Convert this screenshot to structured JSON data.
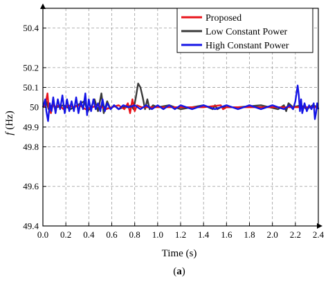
{
  "chart_data": {
    "type": "line",
    "xlabel": "Time (s)",
    "ylabel_italic": "f",
    "ylabel_rest": " (Hz)",
    "caption_open": "(",
    "caption_letter": "a",
    "caption_close": ")",
    "xlim": [
      0.0,
      2.4
    ],
    "ylim": [
      49.4,
      50.5
    ],
    "x_ticks": [
      0.0,
      0.2,
      0.4,
      0.6,
      0.8,
      1.0,
      1.2,
      1.4,
      1.6,
      1.8,
      2.0,
      2.2,
      2.4
    ],
    "x_tick_labels": [
      "0.0",
      "0.2",
      "0.4",
      "0.6",
      "0.8",
      "1.0",
      "1.2",
      "1.4",
      "1.6",
      "1.8",
      "2.0",
      "2.2",
      "2.4"
    ],
    "y_ticks": [
      49.4,
      49.6,
      49.8,
      49.9,
      50.0,
      50.1,
      50.2,
      50.4
    ],
    "y_tick_labels": [
      "49.4",
      "49.6",
      "49.8",
      "49.9",
      "50",
      "50.1",
      "50.2",
      "50.4"
    ],
    "grid": true,
    "legend_position": "top-right",
    "series": [
      {
        "name": "Proposed",
        "color": "#e8141b",
        "points": [
          [
            0.0,
            50.0
          ],
          [
            0.02,
            50.01
          ],
          [
            0.04,
            50.07
          ],
          [
            0.05,
            50.0
          ],
          [
            0.07,
            49.97
          ],
          [
            0.09,
            50.02
          ],
          [
            0.11,
            50.0
          ],
          [
            0.14,
            50.01
          ],
          [
            0.18,
            49.99
          ],
          [
            0.22,
            50.01
          ],
          [
            0.27,
            50.0
          ],
          [
            0.32,
            50.01
          ],
          [
            0.37,
            49.99
          ],
          [
            0.43,
            50.0
          ],
          [
            0.48,
            50.01
          ],
          [
            0.55,
            49.99
          ],
          [
            0.6,
            50.0
          ],
          [
            0.66,
            50.01
          ],
          [
            0.71,
            49.99
          ],
          [
            0.74,
            50.02
          ],
          [
            0.76,
            49.97
          ],
          [
            0.78,
            50.04
          ],
          [
            0.8,
            49.98
          ],
          [
            0.82,
            50.01
          ],
          [
            0.86,
            50.0
          ],
          [
            0.92,
            50.0
          ],
          [
            1.0,
            50.0
          ],
          [
            1.2,
            50.0
          ],
          [
            1.4,
            50.0
          ],
          [
            1.55,
            50.01
          ],
          [
            1.57,
            49.99
          ],
          [
            1.6,
            50.0
          ],
          [
            1.8,
            50.0
          ],
          [
            2.0,
            50.0
          ],
          [
            2.2,
            50.0
          ],
          [
            2.3,
            50.0
          ],
          [
            2.4,
            50.0
          ]
        ]
      },
      {
        "name": "Low Constant Power",
        "color": "#3a3a3a",
        "points": [
          [
            0.0,
            50.0
          ],
          [
            0.03,
            50.03
          ],
          [
            0.05,
            49.99
          ],
          [
            0.08,
            50.01
          ],
          [
            0.12,
            50.0
          ],
          [
            0.18,
            50.01
          ],
          [
            0.24,
            49.99
          ],
          [
            0.3,
            50.01
          ],
          [
            0.36,
            50.03
          ],
          [
            0.39,
            49.98
          ],
          [
            0.42,
            50.0
          ],
          [
            0.45,
            50.04
          ],
          [
            0.48,
            49.98
          ],
          [
            0.51,
            50.07
          ],
          [
            0.53,
            49.97
          ],
          [
            0.56,
            50.03
          ],
          [
            0.59,
            49.99
          ],
          [
            0.62,
            50.01
          ],
          [
            0.66,
            49.99
          ],
          [
            0.7,
            50.0
          ],
          [
            0.74,
            50.0
          ],
          [
            0.77,
            50.01
          ],
          [
            0.79,
            49.99
          ],
          [
            0.81,
            50.05
          ],
          [
            0.83,
            50.12
          ],
          [
            0.85,
            50.1
          ],
          [
            0.87,
            50.05
          ],
          [
            0.89,
            49.99
          ],
          [
            0.91,
            50.04
          ],
          [
            0.93,
            49.99
          ],
          [
            0.96,
            50.01
          ],
          [
            1.0,
            50.0
          ],
          [
            1.1,
            50.01
          ],
          [
            1.2,
            49.99
          ],
          [
            1.3,
            50.0
          ],
          [
            1.4,
            50.01
          ],
          [
            1.48,
            49.99
          ],
          [
            1.5,
            50.01
          ],
          [
            1.52,
            49.99
          ],
          [
            1.55,
            50.0
          ],
          [
            1.7,
            50.0
          ],
          [
            1.9,
            50.01
          ],
          [
            2.05,
            49.99
          ],
          [
            2.1,
            50.01
          ],
          [
            2.12,
            49.98
          ],
          [
            2.14,
            50.02
          ],
          [
            2.18,
            50.0
          ],
          [
            2.25,
            50.01
          ],
          [
            2.3,
            49.99
          ],
          [
            2.35,
            50.01
          ],
          [
            2.4,
            50.0
          ]
        ]
      },
      {
        "name": "High Constant Power",
        "color": "#1414e6",
        "points": [
          [
            0.0,
            50.0
          ],
          [
            0.02,
            50.04
          ],
          [
            0.03,
            49.98
          ],
          [
            0.045,
            49.93
          ],
          [
            0.06,
            50.02
          ],
          [
            0.075,
            49.98
          ],
          [
            0.09,
            50.05
          ],
          [
            0.11,
            49.97
          ],
          [
            0.13,
            50.04
          ],
          [
            0.15,
            49.99
          ],
          [
            0.17,
            50.06
          ],
          [
            0.19,
            49.97
          ],
          [
            0.21,
            50.04
          ],
          [
            0.23,
            49.98
          ],
          [
            0.25,
            50.03
          ],
          [
            0.27,
            49.98
          ],
          [
            0.29,
            50.05
          ],
          [
            0.31,
            49.97
          ],
          [
            0.33,
            50.03
          ],
          [
            0.35,
            49.99
          ],
          [
            0.37,
            50.07
          ],
          [
            0.385,
            49.96
          ],
          [
            0.4,
            50.04
          ],
          [
            0.42,
            49.98
          ],
          [
            0.44,
            50.04
          ],
          [
            0.46,
            49.99
          ],
          [
            0.48,
            50.02
          ],
          [
            0.5,
            49.98
          ],
          [
            0.52,
            50.04
          ],
          [
            0.54,
            49.98
          ],
          [
            0.56,
            50.02
          ],
          [
            0.59,
            49.99
          ],
          [
            0.62,
            50.01
          ],
          [
            0.66,
            49.99
          ],
          [
            0.7,
            50.01
          ],
          [
            0.75,
            50.0
          ],
          [
            0.8,
            50.01
          ],
          [
            0.85,
            49.99
          ],
          [
            0.9,
            50.01
          ],
          [
            0.95,
            49.99
          ],
          [
            1.0,
            50.01
          ],
          [
            1.05,
            49.99
          ],
          [
            1.1,
            50.01
          ],
          [
            1.15,
            49.99
          ],
          [
            1.2,
            50.01
          ],
          [
            1.3,
            49.99
          ],
          [
            1.4,
            50.01
          ],
          [
            1.5,
            49.99
          ],
          [
            1.6,
            50.01
          ],
          [
            1.7,
            49.99
          ],
          [
            1.8,
            50.01
          ],
          [
            1.9,
            49.99
          ],
          [
            2.0,
            50.01
          ],
          [
            2.1,
            49.99
          ],
          [
            2.15,
            50.01
          ],
          [
            2.18,
            49.99
          ],
          [
            2.2,
            50.03
          ],
          [
            2.21,
            50.07
          ],
          [
            2.22,
            50.11
          ],
          [
            2.23,
            50.06
          ],
          [
            2.24,
            49.98
          ],
          [
            2.25,
            50.04
          ],
          [
            2.26,
            49.97
          ],
          [
            2.28,
            50.02
          ],
          [
            2.3,
            49.98
          ],
          [
            2.32,
            50.01
          ],
          [
            2.34,
            49.99
          ],
          [
            2.36,
            50.02
          ],
          [
            2.37,
            49.94
          ],
          [
            2.38,
            49.97
          ],
          [
            2.39,
            50.02
          ],
          [
            2.4,
            49.99
          ]
        ]
      }
    ]
  }
}
